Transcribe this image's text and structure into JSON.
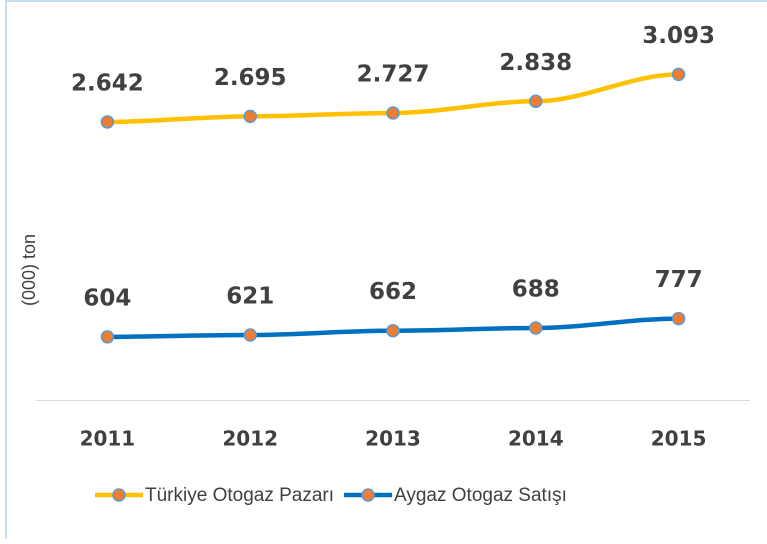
{
  "chart_data": {
    "type": "line",
    "y_label": "(000) ton",
    "categories": [
      "2011",
      "2012",
      "2013",
      "2014",
      "2015"
    ],
    "series": [
      {
        "name": "Türkiye Otogaz Pazarı",
        "color": "#ffc000",
        "marker_color": "#ed7d31",
        "values": [
          2642,
          2695,
          2727,
          2838,
          3093
        ],
        "value_labels": [
          "2.642",
          "2.695",
          "2.727",
          "2.838",
          "3.093"
        ]
      },
      {
        "name": "Aygaz Otogaz Satışı",
        "color": "#0070c0",
        "marker_color": "#ed7d31",
        "values": [
          604,
          621,
          662,
          688,
          777
        ]
      }
    ],
    "ylim": [
      0,
      3500
    ],
    "legend": "bottom"
  }
}
